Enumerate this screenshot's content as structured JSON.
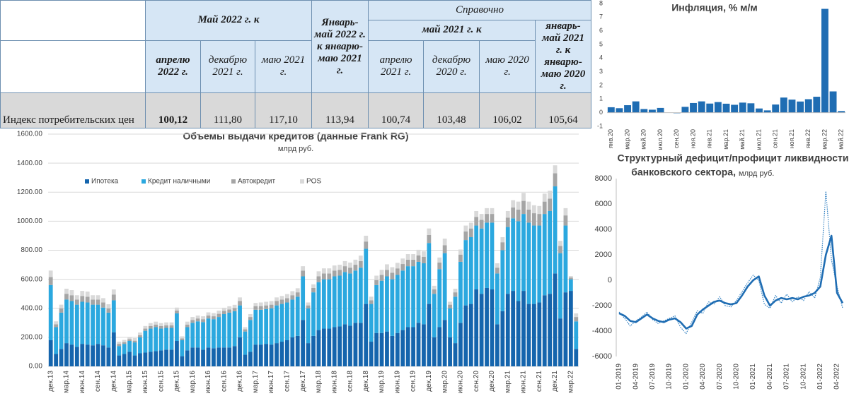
{
  "table": {
    "header": {
      "group1": "Май 2022 г. к",
      "jan_may": "Январь-май 2022 г. к январю-маю 2021 г.",
      "reference": "Справочно",
      "group2": "май 2021 г. к",
      "jan_may_ref": "январь-май 2021 г. к январю-маю 2020 г.",
      "sub": [
        "апрелю 2022 г.",
        "декабрю 2021 г.",
        "маю 2021 г.",
        "апрелю 2021 г.",
        "декабрю 2020 г.",
        "маю 2020 г."
      ]
    },
    "rows": [
      [
        "Индекс потребительских цен",
        "100,12",
        "111,80",
        "117,10",
        "113,94",
        "100,74",
        "103,48",
        "106,02",
        "105,64"
      ]
    ]
  },
  "chart_data": [
    {
      "type": "bar",
      "title": "Инфляция, % м/м",
      "categories": [
        "янв.20",
        null,
        "мар.20",
        null,
        "май.20",
        null,
        "июл.20",
        null,
        "сен.20",
        null,
        "ноя.20",
        null,
        "янв.21",
        null,
        "мар.21",
        null,
        "май.21",
        null,
        "июл.21",
        null,
        "сен.21",
        null,
        "ноя.21",
        null,
        "янв.22",
        null,
        "мар.22",
        null,
        "май.22"
      ],
      "values": [
        0.4,
        0.33,
        0.55,
        0.83,
        0.27,
        0.22,
        0.35,
        0.0,
        -0.04,
        0.43,
        0.71,
        0.83,
        0.67,
        0.78,
        0.66,
        0.58,
        0.74,
        0.69,
        0.31,
        0.17,
        0.6,
        1.11,
        0.96,
        0.82,
        0.99,
        1.17,
        7.61,
        1.56,
        0.12
      ],
      "color": "#1f6db3",
      "ylim": [
        -1,
        8
      ],
      "yticks": [
        -1,
        0,
        1,
        2,
        3,
        4,
        5,
        6,
        7,
        8
      ],
      "grid": false
    },
    {
      "type": "bar",
      "stacked": true,
      "title": "Объемы выдачи кредитов (данные Frank RG)",
      "subtitle": "млрд руб.",
      "categories": [
        "дек.13",
        null,
        null,
        "мар.14",
        null,
        null,
        "июн.14",
        null,
        null,
        "сен.14",
        null,
        null,
        "дек.14",
        null,
        null,
        "мар.15",
        null,
        null,
        "июн.15",
        null,
        null,
        "сен.15",
        null,
        null,
        "дек.15",
        null,
        null,
        "мар.16",
        null,
        null,
        "июн.16",
        null,
        null,
        "сен.16",
        null,
        null,
        "дек.16",
        null,
        null,
        "мар.17",
        null,
        null,
        "июн.17",
        null,
        null,
        "сен.17",
        null,
        null,
        "дек.17",
        null,
        null,
        "мар.18",
        null,
        null,
        "июн.18",
        null,
        null,
        "сен.18",
        null,
        null,
        "дек.18",
        null,
        null,
        "мар.19",
        null,
        null,
        "июн.19",
        null,
        null,
        "сен.19",
        null,
        null,
        "дек.19",
        null,
        null,
        "мар.20",
        null,
        null,
        "июн.20",
        null,
        null,
        "сен.20",
        null,
        null,
        "дек.20",
        null,
        null,
        "мар.21",
        null,
        null,
        "июн.21",
        null,
        null,
        "сен.21",
        null,
        null,
        "дек.21",
        null,
        null,
        "мар.22",
        null
      ],
      "series": [
        {
          "name": "Ипотека",
          "color": "#1565ad",
          "values": [
            180,
            85,
            120,
            160,
            150,
            135,
            155,
            150,
            145,
            155,
            145,
            130,
            235,
            75,
            85,
            100,
            75,
            90,
            95,
            100,
            105,
            110,
            115,
            115,
            175,
            70,
            110,
            130,
            130,
            115,
            130,
            125,
            130,
            130,
            130,
            140,
            200,
            80,
            100,
            150,
            150,
            155,
            150,
            160,
            170,
            180,
            200,
            210,
            320,
            160,
            210,
            250,
            260,
            260,
            270,
            275,
            290,
            280,
            300,
            300,
            430,
            170,
            230,
            230,
            240,
            210,
            230,
            250,
            270,
            270,
            300,
            290,
            430,
            200,
            270,
            320,
            200,
            160,
            300,
            420,
            430,
            530,
            500,
            540,
            530,
            290,
            380,
            500,
            520,
            450,
            520,
            430,
            430,
            440,
            490,
            500,
            640,
            330,
            510,
            520,
            120
          ]
        },
        {
          "name": "Кредит наличными",
          "color": "#2ba8df",
          "values": [
            380,
            185,
            250,
            300,
            300,
            290,
            290,
            290,
            280,
            270,
            260,
            240,
            220,
            65,
            70,
            75,
            90,
            110,
            150,
            160,
            165,
            150,
            150,
            150,
            190,
            110,
            160,
            170,
            180,
            190,
            200,
            200,
            210,
            230,
            240,
            240,
            220,
            160,
            220,
            240,
            240,
            240,
            250,
            260,
            260,
            260,
            260,
            270,
            300,
            240,
            300,
            330,
            340,
            340,
            350,
            350,
            360,
            360,
            360,
            380,
            380,
            260,
            330,
            360,
            380,
            390,
            400,
            410,
            420,
            420,
            420,
            420,
            420,
            300,
            400,
            460,
            200,
            320,
            420,
            450,
            460,
            440,
            450,
            450,
            460,
            350,
            420,
            460,
            500,
            550,
            530,
            560,
            540,
            530,
            560,
            570,
            600,
            450,
            460,
            80,
            190
          ]
        },
        {
          "name": "Автокредит",
          "color": "#a5a5a5",
          "values": [
            55,
            20,
            30,
            40,
            40,
            35,
            40,
            40,
            35,
            35,
            35,
            30,
            40,
            15,
            12,
            12,
            12,
            15,
            15,
            18,
            18,
            18,
            18,
            18,
            20,
            12,
            18,
            20,
            20,
            20,
            20,
            20,
            22,
            22,
            22,
            22,
            30,
            15,
            20,
            25,
            25,
            25,
            25,
            30,
            30,
            30,
            30,
            30,
            40,
            20,
            30,
            40,
            40,
            40,
            40,
            40,
            40,
            40,
            40,
            45,
            50,
            25,
            35,
            40,
            45,
            45,
            45,
            45,
            45,
            45,
            45,
            45,
            55,
            30,
            45,
            55,
            25,
            30,
            50,
            60,
            60,
            60,
            60,
            60,
            60,
            40,
            55,
            65,
            75,
            80,
            90,
            90,
            85,
            80,
            85,
            85,
            90,
            50,
            70,
            12,
            30
          ]
        },
        {
          "name": "POS",
          "color": "#d9d9d9",
          "values": [
            45,
            20,
            25,
            35,
            35,
            30,
            35,
            35,
            30,
            30,
            30,
            28,
            35,
            15,
            15,
            15,
            18,
            18,
            18,
            20,
            20,
            20,
            20,
            20,
            20,
            15,
            20,
            20,
            20,
            20,
            22,
            22,
            22,
            22,
            22,
            22,
            25,
            15,
            20,
            22,
            25,
            25,
            25,
            25,
            25,
            28,
            28,
            28,
            30,
            20,
            25,
            35,
            35,
            35,
            35,
            35,
            35,
            35,
            35,
            38,
            40,
            25,
            30,
            35,
            38,
            38,
            38,
            38,
            38,
            38,
            38,
            38,
            45,
            25,
            35,
            45,
            20,
            25,
            35,
            40,
            40,
            40,
            40,
            40,
            40,
            30,
            35,
            45,
            50,
            55,
            55,
            55,
            55,
            55,
            55,
            55,
            55,
            35,
            50,
            10,
            25
          ]
        }
      ],
      "ylim": [
        0,
        1600
      ],
      "yticks": [
        {
          "value": 0,
          "label": "0.00"
        },
        {
          "value": 200,
          "label": "200.00"
        },
        {
          "value": 400,
          "label": "400.00"
        },
        {
          "value": 600,
          "label": "600.00"
        },
        {
          "value": 800,
          "label": "800.00"
        },
        {
          "value": 1000,
          "label": "1000.00"
        },
        {
          "value": 1200,
          "label": "1200.00"
        },
        {
          "value": 1400,
          "label": "1400.00"
        },
        {
          "value": 1600,
          "label": "1600.00"
        }
      ],
      "grid": true,
      "legend": "top"
    },
    {
      "type": "line",
      "title": [
        "Структурный дефицит/профицит ликвидности",
        "банковского сектора,"
      ],
      "subtitle": "млрд руб.",
      "categories": [
        "01-2019",
        null,
        null,
        "04-2019",
        null,
        null,
        "07-2019",
        null,
        null,
        "10-2019",
        null,
        null,
        "01-2020",
        null,
        null,
        "04-2020",
        null,
        null,
        "07-2020",
        null,
        null,
        "10-2020",
        null,
        null,
        "01-2021",
        null,
        null,
        "04-2021",
        null,
        null,
        "07-2021",
        null,
        null,
        "10-2021",
        null,
        null,
        "01-2022",
        null,
        null,
        "04-2022",
        null
      ],
      "series": [
        {
          "color": "#2f7fc1",
          "line_style": "dotted",
          "values": [
            -2500,
            -3000,
            -3600,
            -3200,
            -2900,
            -2500,
            -3100,
            -3400,
            -3200,
            -3000,
            -2800,
            -3700,
            -4200,
            -3300,
            -2400,
            -2600,
            -1700,
            -1900,
            -1300,
            -2000,
            -2100,
            -1600,
            -900,
            -200,
            400,
            0,
            -1900,
            -2200,
            -1200,
            -1800,
            -1100,
            -1700,
            -1300,
            -1600,
            -900,
            -1400,
            200,
            7000,
            1600,
            -500,
            -2200
          ]
        },
        {
          "color": "#1f6db3",
          "line_style": "solid",
          "values": [
            -2600,
            -2800,
            -3200,
            -3300,
            -3000,
            -2700,
            -3000,
            -3200,
            -3300,
            -3100,
            -3000,
            -3300,
            -3800,
            -3600,
            -2700,
            -2300,
            -2000,
            -1700,
            -1600,
            -1800,
            -1900,
            -1800,
            -1200,
            -500,
            0,
            300,
            -1200,
            -2000,
            -1600,
            -1400,
            -1500,
            -1400,
            -1500,
            -1300,
            -1200,
            -1000,
            -500,
            2000,
            3500,
            -1000,
            -1800
          ]
        }
      ],
      "ylim": [
        -6000,
        8000
      ],
      "yticks": [
        -6000,
        -4000,
        -2000,
        0,
        2000,
        4000,
        6000,
        8000
      ],
      "grid": false
    }
  ]
}
